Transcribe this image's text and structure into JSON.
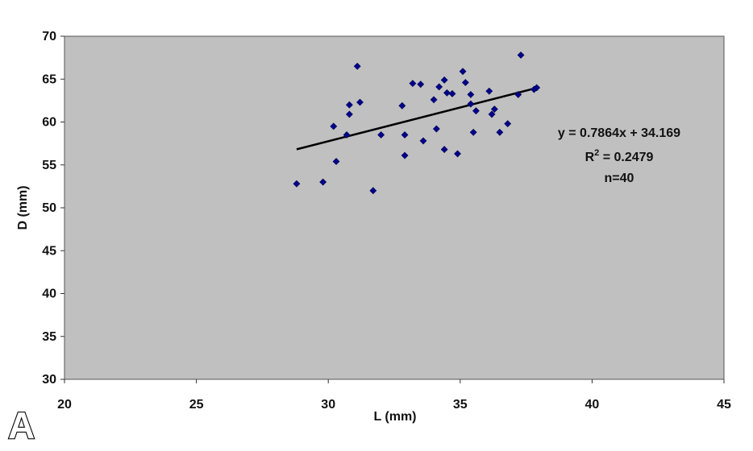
{
  "panel_label": "A",
  "chart_data": {
    "type": "scatter",
    "xlabel": "L (mm)",
    "ylabel": "D (mm)",
    "xlim": [
      20,
      45
    ],
    "ylim": [
      30,
      70
    ],
    "xticks": [
      "20",
      "25",
      "30",
      "35",
      "40",
      "45"
    ],
    "yticks": [
      "30",
      "35",
      "40",
      "45",
      "50",
      "55",
      "60",
      "65",
      "70"
    ],
    "grid": false,
    "plot_background": "#c0c0c0",
    "marker_color": "#00008b",
    "marker": "diamond",
    "trendline": {
      "slope": 0.7864,
      "intercept": 34.169,
      "x_range": [
        28.8,
        38.0
      ],
      "color": "#000000"
    },
    "annotations": {
      "equation": "y = 0.7864x + 34.169",
      "r2_prefix": "R",
      "r2_sup": "2",
      "r2_value": " = 0.2479",
      "n": "n=40"
    },
    "points": [
      {
        "x": 28.8,
        "y": 52.8
      },
      {
        "x": 29.8,
        "y": 53.0
      },
      {
        "x": 30.2,
        "y": 59.5
      },
      {
        "x": 30.3,
        "y": 55.4
      },
      {
        "x": 30.7,
        "y": 58.5
      },
      {
        "x": 30.8,
        "y": 60.9
      },
      {
        "x": 30.8,
        "y": 62.0
      },
      {
        "x": 31.1,
        "y": 66.5
      },
      {
        "x": 31.2,
        "y": 62.3
      },
      {
        "x": 31.7,
        "y": 52.0
      },
      {
        "x": 32.0,
        "y": 58.5
      },
      {
        "x": 32.8,
        "y": 61.9
      },
      {
        "x": 32.9,
        "y": 58.5
      },
      {
        "x": 32.9,
        "y": 56.1
      },
      {
        "x": 33.2,
        "y": 64.5
      },
      {
        "x": 33.5,
        "y": 64.4
      },
      {
        "x": 33.6,
        "y": 57.8
      },
      {
        "x": 34.0,
        "y": 62.6
      },
      {
        "x": 34.2,
        "y": 64.1
      },
      {
        "x": 34.1,
        "y": 59.2
      },
      {
        "x": 34.4,
        "y": 64.9
      },
      {
        "x": 34.4,
        "y": 56.8
      },
      {
        "x": 34.5,
        "y": 63.4
      },
      {
        "x": 34.7,
        "y": 63.3
      },
      {
        "x": 34.9,
        "y": 56.3
      },
      {
        "x": 35.1,
        "y": 65.9
      },
      {
        "x": 35.2,
        "y": 64.6
      },
      {
        "x": 35.4,
        "y": 63.2
      },
      {
        "x": 35.4,
        "y": 62.1
      },
      {
        "x": 35.5,
        "y": 58.8
      },
      {
        "x": 35.6,
        "y": 61.3
      },
      {
        "x": 36.1,
        "y": 63.6
      },
      {
        "x": 36.2,
        "y": 60.9
      },
      {
        "x": 36.3,
        "y": 61.5
      },
      {
        "x": 36.5,
        "y": 58.8
      },
      {
        "x": 36.8,
        "y": 59.8
      },
      {
        "x": 37.2,
        "y": 63.2
      },
      {
        "x": 37.3,
        "y": 67.8
      },
      {
        "x": 37.8,
        "y": 63.8
      },
      {
        "x": 37.9,
        "y": 64.0
      }
    ]
  }
}
